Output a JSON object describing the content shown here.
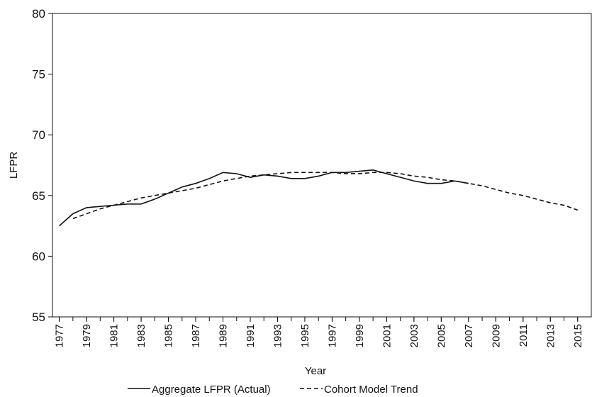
{
  "chart_data": {
    "type": "line",
    "x_label": "Year",
    "y_label": "LFPR",
    "x": [
      1977,
      1978,
      1979,
      1980,
      1981,
      1982,
      1983,
      1984,
      1985,
      1986,
      1987,
      1988,
      1989,
      1990,
      1991,
      1992,
      1993,
      1994,
      1995,
      1996,
      1997,
      1998,
      1999,
      2000,
      2001,
      2002,
      2003,
      2004,
      2005,
      2006,
      2007,
      2008,
      2009,
      2010,
      2011,
      2012,
      2013,
      2014,
      2015
    ],
    "series": [
      {
        "name": "Aggregate LFPR (Actual)",
        "color": "#111111",
        "dash": "solid",
        "values": [
          62.5,
          63.5,
          64.0,
          64.1,
          64.2,
          64.3,
          64.3,
          64.7,
          65.2,
          65.7,
          66.0,
          66.4,
          66.9,
          66.8,
          66.5,
          66.7,
          66.6,
          66.4,
          66.4,
          66.6,
          66.9,
          66.9,
          67.0,
          67.1,
          66.8,
          66.5,
          66.2,
          66.0,
          66.0,
          66.2,
          66.0,
          null,
          null,
          null,
          null,
          null,
          null,
          null,
          null
        ]
      },
      {
        "name": "Cohort Model Trend",
        "color": "#111111",
        "dash": "dashed",
        "values": [
          null,
          63.1,
          63.5,
          63.9,
          64.2,
          64.5,
          64.8,
          65.0,
          65.2,
          65.4,
          65.6,
          65.9,
          66.2,
          66.4,
          66.6,
          66.7,
          66.8,
          66.9,
          66.9,
          66.9,
          66.9,
          66.8,
          66.8,
          66.9,
          66.9,
          66.8,
          66.6,
          66.5,
          66.3,
          66.2,
          66.0,
          65.8,
          65.5,
          65.2,
          65.0,
          64.7,
          64.4,
          64.2,
          63.8
        ]
      }
    ],
    "xlim": [
      1976.5,
      2016
    ],
    "xticks": [
      1977,
      1979,
      1981,
      1983,
      1985,
      1987,
      1989,
      1991,
      1993,
      1995,
      1997,
      1999,
      2001,
      2003,
      2005,
      2007,
      2009,
      2011,
      2013,
      2015
    ],
    "ylim": [
      55,
      80
    ],
    "yticks": [
      55,
      60,
      65,
      70,
      75,
      80
    ],
    "legend": "bottom"
  }
}
